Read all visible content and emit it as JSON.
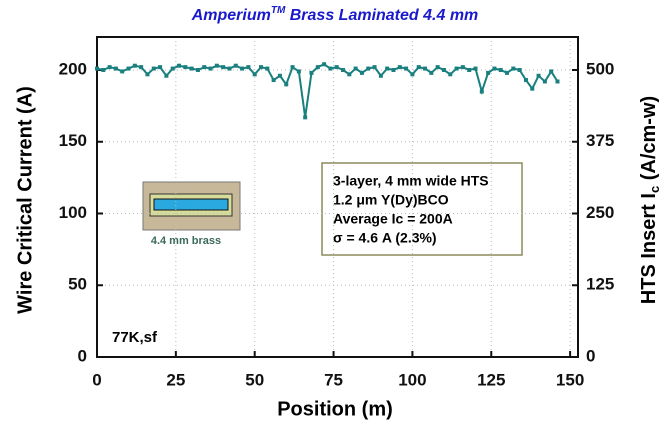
{
  "chart_data": {
    "type": "line",
    "title": {
      "main": "Amperium",
      "sup": "TM",
      "rest": " Brass Laminated 4.4 mm"
    },
    "x_label": "Position (m)",
    "y_label": "Wire Critical Current (A)",
    "y2_label": {
      "main": "HTS Insert I",
      "sub": "c",
      "rest": " (A/cm-w)"
    },
    "xlim": [
      0,
      152.5
    ],
    "xticks": [
      0,
      25,
      50,
      75,
      100,
      125,
      150
    ],
    "ylim": [
      0,
      223
    ],
    "yticks": [
      0,
      50,
      100,
      150,
      200
    ],
    "y2lim": [
      0,
      557.5
    ],
    "y2ticks": [
      0,
      125,
      250,
      375,
      500
    ],
    "grid": true,
    "series": [
      {
        "color": "#1a7f7f",
        "x": [
          0,
          2,
          4,
          6,
          8,
          10,
          12,
          14,
          16,
          18,
          20,
          22,
          24,
          26,
          28,
          30,
          32,
          34,
          36,
          38,
          40,
          42,
          44,
          46,
          48,
          50,
          52,
          54,
          56,
          58,
          60,
          62,
          64,
          66,
          68,
          70,
          72,
          74,
          76,
          78,
          80,
          82,
          84,
          86,
          88,
          90,
          92,
          94,
          96,
          98,
          100,
          102,
          104,
          106,
          108,
          110,
          112,
          114,
          116,
          118,
          120,
          122,
          124,
          126,
          128,
          130,
          132,
          134,
          136,
          138,
          140,
          142,
          144,
          146
        ],
        "values": [
          201,
          200,
          202,
          201,
          199,
          201,
          203,
          202,
          197,
          201,
          202,
          196,
          201,
          203,
          202,
          201,
          200,
          202,
          201,
          203,
          202,
          201,
          203,
          201,
          202,
          197,
          202,
          201,
          193,
          196,
          190,
          202,
          199,
          167,
          198,
          202,
          204,
          201,
          202,
          200,
          197,
          201,
          198,
          201,
          202,
          196,
          201,
          200,
          202,
          201,
          197,
          202,
          201,
          198,
          202,
          200,
          197,
          201,
          202,
          200,
          201,
          185,
          198,
          201,
          200,
          198,
          201,
          200,
          193,
          187,
          196,
          192,
          199,
          192
        ]
      }
    ],
    "annotations": {
      "box": [
        "3-layer, 4 mm wide HTS",
        "1.2 μm Y(Dy)BCO",
        "Average Ic = 200A",
        "σ = 4.6 A (2.3%)"
      ],
      "inset_label": "4.4 mm brass",
      "condition": "77K,sf"
    }
  }
}
